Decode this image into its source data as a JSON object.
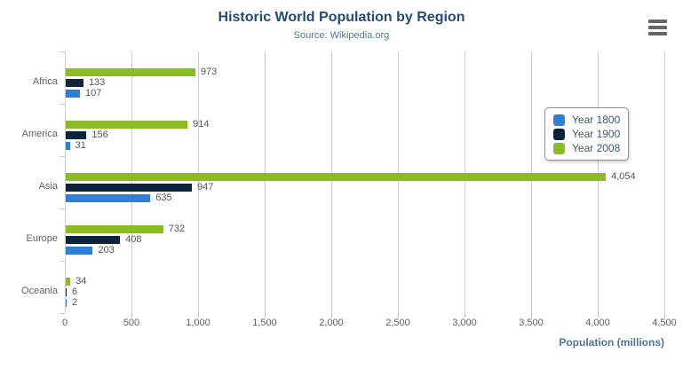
{
  "header": {
    "title": "Historic World Population by Region",
    "subtitle": "Source: Wikipedia.org"
  },
  "export_menu": {
    "icon": "hamburger-icon"
  },
  "chart_data": {
    "type": "bar",
    "orientation": "horizontal",
    "title": "Historic World Population by Region",
    "subtitle": "Source: Wikipedia.org",
    "categories": [
      "Africa",
      "America",
      "Asia",
      "Europe",
      "Oceania"
    ],
    "series": [
      {
        "name": "Year 1800",
        "color": "#2f7ed8",
        "values": [
          107,
          31,
          635,
          203,
          2
        ]
      },
      {
        "name": "Year 1900",
        "color": "#0d233a",
        "values": [
          133,
          156,
          947,
          408,
          6
        ]
      },
      {
        "name": "Year 2008",
        "color": "#8bbc21",
        "values": [
          973,
          914,
          4054,
          732,
          34
        ]
      }
    ],
    "bar_display_order_top_to_bottom": [
      "Year 2008",
      "Year 1900",
      "Year 1800"
    ],
    "data_labels": true,
    "xlabel": "Population (millions)",
    "xlim": [
      0,
      4500
    ],
    "xtick_interval": 500,
    "xtick_labels": [
      "0",
      "500",
      "1,000",
      "1,500",
      "2,000",
      "2,500",
      "3,000",
      "3,500",
      "4,000",
      "4,500"
    ],
    "grid": true,
    "legend": {
      "position": "right",
      "items": [
        "Year 1800",
        "Year 1900",
        "Year 2008"
      ]
    }
  },
  "palette": {
    "title_color": "#274b6d",
    "subtitle_color": "#4d759e",
    "axis_title_color": "#4d759e",
    "tick_label_color": "#606060",
    "data_label_color": "#555555",
    "gridline_color": "#cccccc",
    "category_axis_color": "#c0d0e0",
    "value_axis_tick_color": "#c0c0c0",
    "legend_border_color": "#909090",
    "legend_text_color": "#3e576f",
    "export_icon_color": "#666666"
  }
}
